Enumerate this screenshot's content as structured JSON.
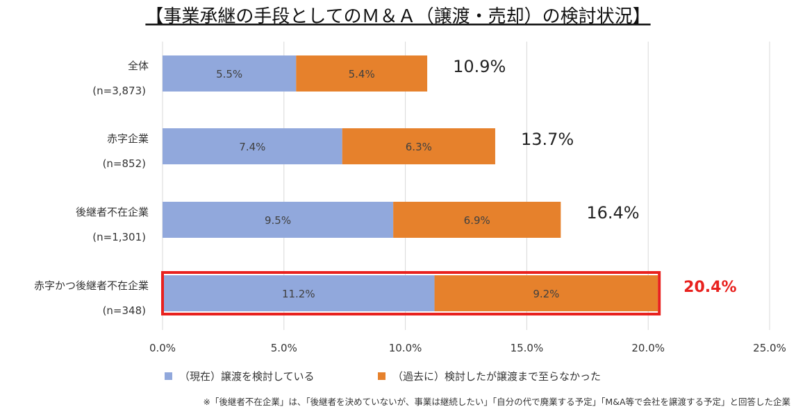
{
  "chart_data": {
    "type": "bar",
    "orientation": "horizontal",
    "stacked": true,
    "title": "【事業承継の手段としてのＭ＆Ａ（譲渡・売却）の検討状況】",
    "categories": [
      {
        "name": "全体",
        "sample": "(n=3,873)"
      },
      {
        "name": "赤字企業",
        "sample": "(n=852)"
      },
      {
        "name": "後継者不在企業",
        "sample": "(n=1,301)"
      },
      {
        "name": "赤字かつ後継者不在企業",
        "sample": "(n=348)"
      }
    ],
    "series": [
      {
        "name": "（現在）譲渡を検討している",
        "values": [
          5.5,
          7.4,
          9.5,
          11.2
        ],
        "labels": [
          "5.5%",
          "7.4%",
          "9.5%",
          "11.2%"
        ],
        "color": "#91A8DC"
      },
      {
        "name": "（過去に）検討したが譲渡まで至らなかった",
        "values": [
          5.4,
          6.3,
          6.9,
          9.2
        ],
        "labels": [
          "5.4%",
          "6.3%",
          "6.9%",
          "9.2%"
        ],
        "color": "#E6812C"
      }
    ],
    "totals": [
      10.9,
      13.7,
      16.4,
      20.4
    ],
    "total_labels": [
      "10.9%",
      "13.7%",
      "16.4%",
      "20.4%"
    ],
    "highlight_index": 3,
    "highlight_color": "#E8211E",
    "xlim": [
      0,
      25
    ],
    "xticks": [
      0,
      5,
      10,
      15,
      20,
      25
    ],
    "xtick_labels": [
      "0.0%",
      "5.0%",
      "10.0%",
      "15.0%",
      "20.0%",
      "25.0%"
    ],
    "grid": true,
    "legend_position": "bottom",
    "footnote": "※「後継者不在企業」は、「後継者を決めていないが、事業は継続したい」「自分の代で廃業する予定」「M&A等で会社を譲渡する予定」と回答した企業"
  }
}
